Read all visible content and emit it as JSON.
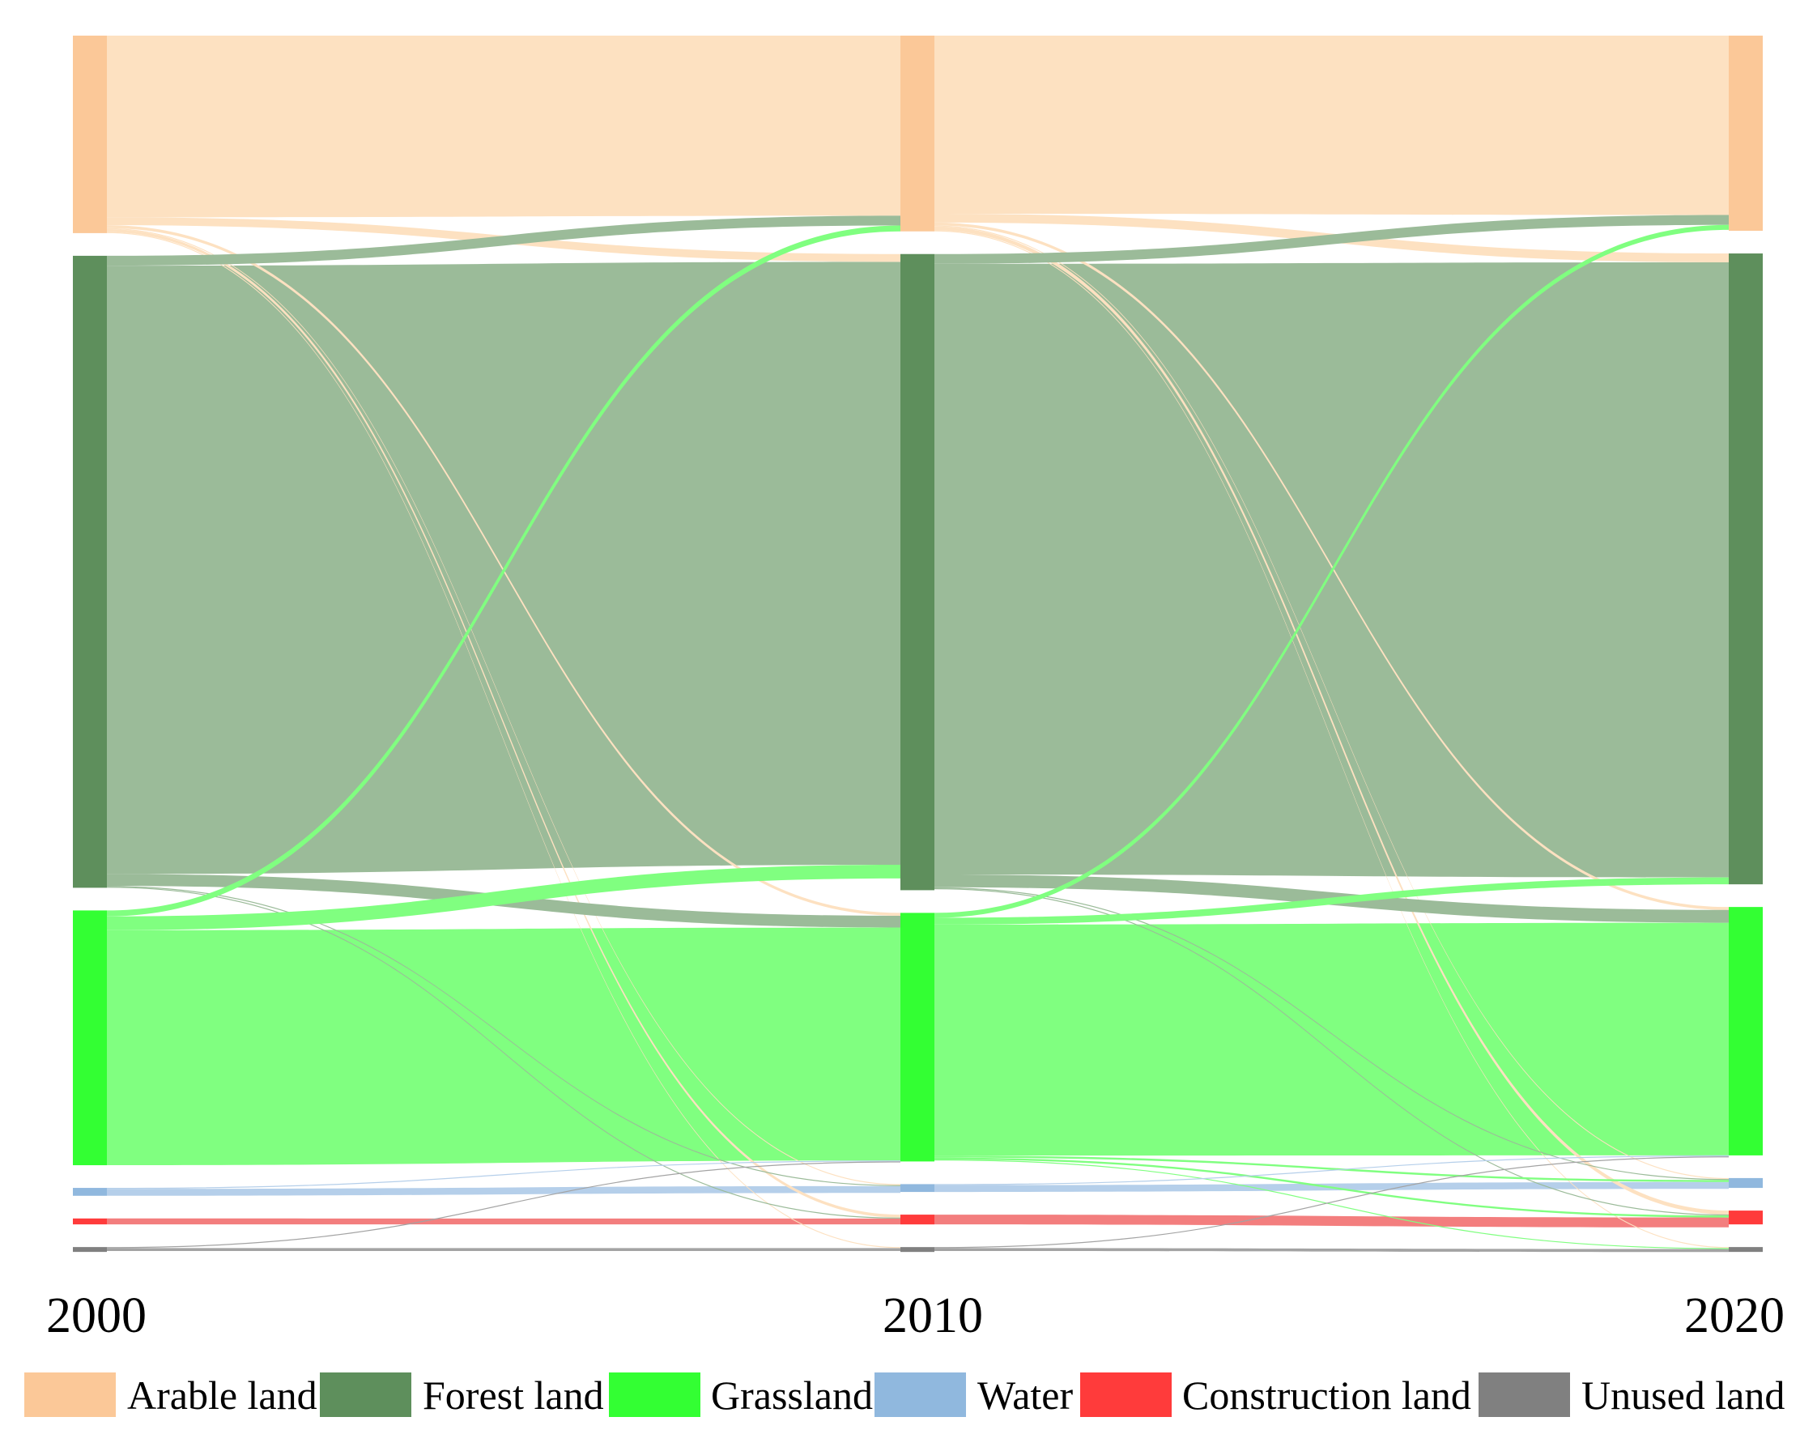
{
  "chart_data": {
    "type": "sankey",
    "title": "",
    "years": [
      "2000",
      "2010",
      "2020"
    ],
    "categories": [
      {
        "key": "arable",
        "name": "Arable land",
        "node_color": "#FBC898",
        "flow_color": "#FDE1C1"
      },
      {
        "key": "forest",
        "name": "Forest land",
        "node_color": "#5E8F5C",
        "flow_color": "#9BBB99"
      },
      {
        "key": "grass",
        "name": "Grassland",
        "node_color": "#33FF33",
        "flow_color": "#80FF80"
      },
      {
        "key": "water",
        "name": "Water",
        "node_color": "#90B8DE",
        "flow_color": "#B5CFEA"
      },
      {
        "key": "construction",
        "name": "Construction land",
        "node_color": "#FF3B3B",
        "flow_color": "#F37E7E"
      },
      {
        "key": "unused",
        "name": "Unused land",
        "node_color": "#808080",
        "flow_color": "#A3A3A3"
      }
    ],
    "node_values": [
      {
        "year": "2000",
        "values": {
          "arable": 1.0,
          "forest": 3.2,
          "grass": 1.29,
          "water": 0.04,
          "construction": 0.03,
          "unused": 0.02
        }
      },
      {
        "year": "2010",
        "values": {
          "arable": 1.0,
          "forest": 3.25,
          "grass": 1.27,
          "water": 0.04,
          "construction": 0.05,
          "unused": 0.02
        }
      },
      {
        "year": "2020",
        "values": {
          "arable": 0.99,
          "forest": 3.2,
          "grass": 1.26,
          "water": 0.05,
          "construction": 0.07,
          "unused": 0.02
        }
      }
    ],
    "flows": [
      {
        "period": "2000-2010",
        "from": "arable",
        "to": "arable",
        "value": 0.92
      },
      {
        "period": "2000-2010",
        "from": "arable",
        "to": "forest",
        "value": 0.04
      },
      {
        "period": "2000-2010",
        "from": "arable",
        "to": "grass",
        "value": 0.015
      },
      {
        "period": "2000-2010",
        "from": "arable",
        "to": "construction",
        "value": 0.015
      },
      {
        "period": "2000-2010",
        "from": "arable",
        "to": "water",
        "value": 0.005
      },
      {
        "period": "2000-2010",
        "from": "arable",
        "to": "unused",
        "value": 0.005
      },
      {
        "period": "2000-2010",
        "from": "forest",
        "to": "arable",
        "value": 0.05
      },
      {
        "period": "2000-2010",
        "from": "forest",
        "to": "forest",
        "value": 3.08
      },
      {
        "period": "2000-2010",
        "from": "forest",
        "to": "grass",
        "value": 0.06
      },
      {
        "period": "2000-2010",
        "from": "forest",
        "to": "water",
        "value": 0.005
      },
      {
        "period": "2000-2010",
        "from": "forest",
        "to": "construction",
        "value": 0.005
      },
      {
        "period": "2000-2010",
        "from": "grass",
        "to": "arable",
        "value": 0.03
      },
      {
        "period": "2000-2010",
        "from": "grass",
        "to": "forest",
        "value": 0.07
      },
      {
        "period": "2000-2010",
        "from": "grass",
        "to": "grass",
        "value": 1.19
      },
      {
        "period": "2000-2010",
        "from": "water",
        "to": "water",
        "value": 0.035
      },
      {
        "period": "2000-2010",
        "from": "water",
        "to": "grass",
        "value": 0.005
      },
      {
        "period": "2000-2010",
        "from": "construction",
        "to": "construction",
        "value": 0.03
      },
      {
        "period": "2000-2010",
        "from": "unused",
        "to": "unused",
        "value": 0.015
      },
      {
        "period": "2000-2010",
        "from": "unused",
        "to": "grass",
        "value": 0.005
      },
      {
        "period": "2010-2020",
        "from": "arable",
        "to": "arable",
        "value": 0.91
      },
      {
        "period": "2010-2020",
        "from": "arable",
        "to": "forest",
        "value": 0.045
      },
      {
        "period": "2010-2020",
        "from": "arable",
        "to": "grass",
        "value": 0.015
      },
      {
        "period": "2010-2020",
        "from": "arable",
        "to": "construction",
        "value": 0.02
      },
      {
        "period": "2010-2020",
        "from": "arable",
        "to": "water",
        "value": 0.005
      },
      {
        "period": "2010-2020",
        "from": "arable",
        "to": "unused",
        "value": 0.005
      },
      {
        "period": "2010-2020",
        "from": "forest",
        "to": "arable",
        "value": 0.05
      },
      {
        "period": "2010-2020",
        "from": "forest",
        "to": "forest",
        "value": 3.12
      },
      {
        "period": "2010-2020",
        "from": "forest",
        "to": "grass",
        "value": 0.065
      },
      {
        "period": "2010-2020",
        "from": "forest",
        "to": "water",
        "value": 0.005
      },
      {
        "period": "2010-2020",
        "from": "forest",
        "to": "construction",
        "value": 0.005
      },
      {
        "period": "2010-2020",
        "from": "grass",
        "to": "arable",
        "value": 0.025
      },
      {
        "period": "2010-2020",
        "from": "grass",
        "to": "forest",
        "value": 0.035
      },
      {
        "period": "2010-2020",
        "from": "grass",
        "to": "grass",
        "value": 1.18
      },
      {
        "period": "2010-2020",
        "from": "grass",
        "to": "water",
        "value": 0.01
      },
      {
        "period": "2010-2020",
        "from": "grass",
        "to": "construction",
        "value": 0.01
      },
      {
        "period": "2010-2020",
        "from": "grass",
        "to": "unused",
        "value": 0.005
      },
      {
        "period": "2010-2020",
        "from": "water",
        "to": "water",
        "value": 0.035
      },
      {
        "period": "2010-2020",
        "from": "water",
        "to": "grass",
        "value": 0.005
      },
      {
        "period": "2010-2020",
        "from": "construction",
        "to": "construction",
        "value": 0.05
      },
      {
        "period": "2010-2020",
        "from": "unused",
        "to": "unused",
        "value": 0.015
      },
      {
        "period": "2010-2020",
        "from": "unused",
        "to": "grass",
        "value": 0.005
      }
    ],
    "legend": {
      "position": "bottom"
    }
  }
}
